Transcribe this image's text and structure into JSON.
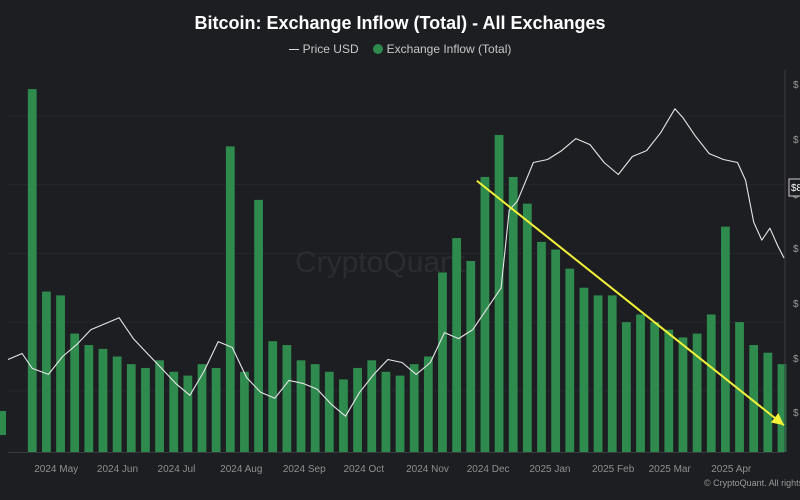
{
  "chart_data": {
    "type": "bar+line",
    "title": "Bitcoin: Exchange Inflow (Total) - All Exchanges",
    "legend": [
      {
        "name": "Price USD",
        "kind": "line",
        "color": "#e6e6e6"
      },
      {
        "name": "Exchange Inflow (Total)",
        "kind": "bar",
        "color": "#2f8a4e"
      }
    ],
    "x_tick_labels": [
      "2024 May",
      "2024 Jun",
      "2024 Jul",
      "2024 Aug",
      "2024 Sep",
      "2024 Oct",
      "2024 Nov",
      "2024 Dec",
      "2025 Jan",
      "2025 Feb",
      "2025 Mar",
      "2025 Apr"
    ],
    "x_range_days": [
      -12,
      372
    ],
    "y_inflow_range": [
      0,
      100
    ],
    "y_price_range": [
      48000,
      112000
    ],
    "current_price_label": "$8",
    "right_axis_tick_symbol": "$",
    "price_usd": [
      [
        -12,
        63500
      ],
      [
        -5,
        64500
      ],
      [
        0,
        62000
      ],
      [
        8,
        61000
      ],
      [
        15,
        64000
      ],
      [
        22,
        66000
      ],
      [
        29,
        68500
      ],
      [
        36,
        69500
      ],
      [
        43,
        70500
      ],
      [
        50,
        67000
      ],
      [
        57,
        64500
      ],
      [
        64,
        62000
      ],
      [
        71,
        59500
      ],
      [
        78,
        57500
      ],
      [
        85,
        61500
      ],
      [
        92,
        66500
      ],
      [
        99,
        65500
      ],
      [
        106,
        60500
      ],
      [
        113,
        58000
      ],
      [
        120,
        57000
      ],
      [
        127,
        60000
      ],
      [
        134,
        59500
      ],
      [
        141,
        58500
      ],
      [
        148,
        56000
      ],
      [
        155,
        54000
      ],
      [
        162,
        58000
      ],
      [
        169,
        61000
      ],
      [
        176,
        63500
      ],
      [
        183,
        63000
      ],
      [
        190,
        61000
      ],
      [
        197,
        63000
      ],
      [
        204,
        68000
      ],
      [
        211,
        67000
      ],
      [
        218,
        68500
      ],
      [
        225,
        72000
      ],
      [
        232,
        75500
      ],
      [
        236,
        88500
      ],
      [
        240,
        90000
      ],
      [
        248,
        96500
      ],
      [
        255,
        97000
      ],
      [
        262,
        98500
      ],
      [
        269,
        100500
      ],
      [
        276,
        99500
      ],
      [
        283,
        96500
      ],
      [
        290,
        94500
      ],
      [
        297,
        97500
      ],
      [
        304,
        98500
      ],
      [
        311,
        101500
      ],
      [
        318,
        105500
      ],
      [
        322,
        104000
      ],
      [
        328,
        101000
      ],
      [
        335,
        98000
      ],
      [
        342,
        97000
      ],
      [
        349,
        96500
      ],
      [
        353,
        93500
      ],
      [
        357,
        86500
      ],
      [
        361,
        83500
      ],
      [
        365,
        85500
      ],
      [
        369,
        82500
      ],
      [
        372,
        80500
      ]
    ],
    "exchange_inflow": [
      [
        0,
        95
      ],
      [
        7,
        42
      ],
      [
        14,
        41
      ],
      [
        21,
        31
      ],
      [
        28,
        28
      ],
      [
        35,
        27
      ],
      [
        42,
        25
      ],
      [
        49,
        23
      ],
      [
        56,
        22
      ],
      [
        63,
        24
      ],
      [
        70,
        21
      ],
      [
        77,
        20
      ],
      [
        84,
        23
      ],
      [
        91,
        22
      ],
      [
        98,
        80
      ],
      [
        105,
        21
      ],
      [
        112,
        66
      ],
      [
        119,
        29
      ],
      [
        126,
        28
      ],
      [
        133,
        24
      ],
      [
        140,
        23
      ],
      [
        147,
        21
      ],
      [
        154,
        19
      ],
      [
        161,
        22
      ],
      [
        168,
        24
      ],
      [
        175,
        21
      ],
      [
        182,
        20
      ],
      [
        189,
        23
      ],
      [
        196,
        25
      ],
      [
        203,
        47
      ],
      [
        210,
        56
      ],
      [
        217,
        50
      ],
      [
        224,
        72
      ],
      [
        231,
        83
      ],
      [
        238,
        72
      ],
      [
        245,
        65
      ],
      [
        252,
        55
      ],
      [
        259,
        53
      ],
      [
        266,
        48
      ],
      [
        273,
        43
      ],
      [
        280,
        41
      ],
      [
        287,
        41
      ],
      [
        294,
        34
      ],
      [
        301,
        36
      ],
      [
        308,
        34
      ],
      [
        315,
        32
      ],
      [
        322,
        30
      ],
      [
        329,
        31
      ],
      [
        336,
        36
      ],
      [
        343,
        59
      ],
      [
        350,
        34
      ],
      [
        357,
        28
      ],
      [
        364,
        26
      ],
      [
        371,
        23
      ]
    ],
    "trendline": {
      "from": [
        220,
        71
      ],
      "to": [
        372,
        7
      ],
      "color": "#f2f23a"
    },
    "watermark": "CryptoQuant",
    "source_credit": "© CryptoQuant. All rights reserved"
  }
}
